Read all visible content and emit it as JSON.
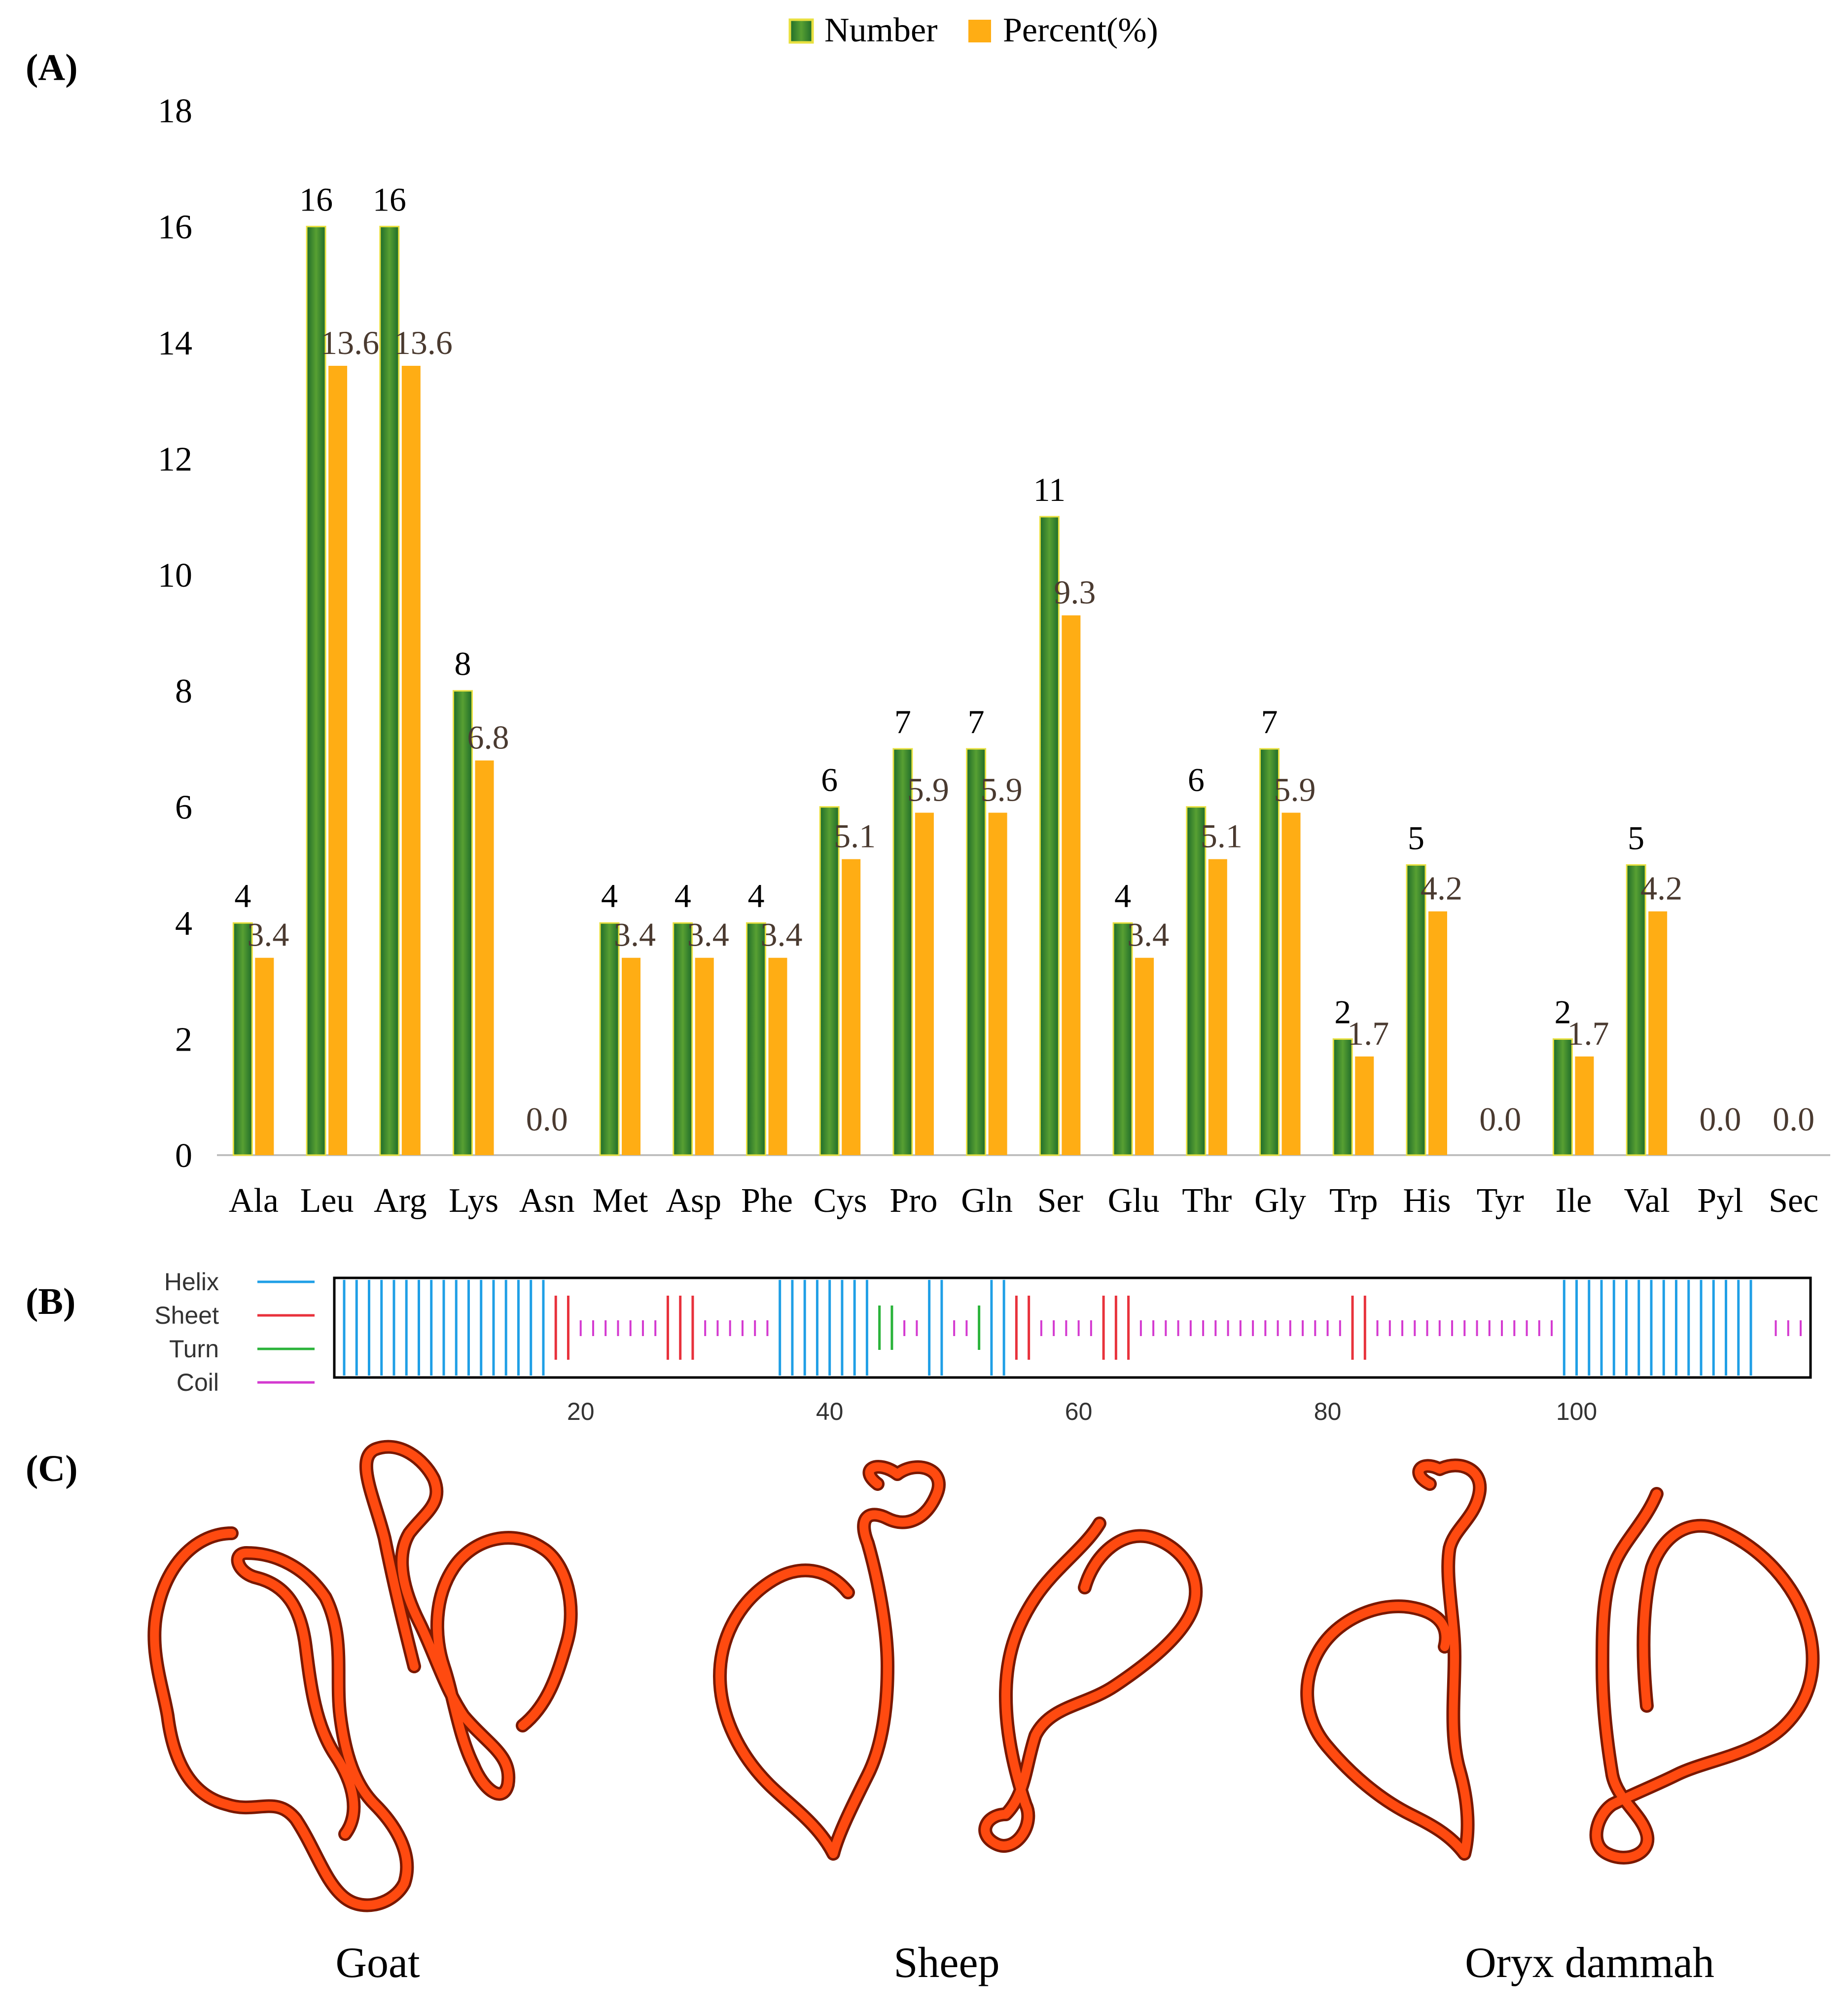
{
  "panels": {
    "a": "(A)",
    "b": "(B)",
    "c": "(C)"
  },
  "colors": {
    "number_dark": "#1e6b2a",
    "number_mid": "#4f9a2e",
    "number_edge": "#e8e040",
    "percent": "#ffad14",
    "percent_label": "#4a3a30",
    "helix": "#1f9fe6",
    "sheet": "#e8323c",
    "turn": "#2ab33a",
    "coil": "#d43ad0",
    "ribbon": "#ff4a10",
    "ribbon_edge": "#7a1800"
  },
  "chart_data": {
    "type": "bar",
    "title": "",
    "xlabel": "",
    "ylabel": "",
    "ylim": [
      0,
      18
    ],
    "yticks": [
      "0",
      "2",
      "4",
      "6",
      "8",
      "10",
      "12",
      "14",
      "16",
      "18"
    ],
    "legend": "top-center",
    "categories": [
      "Ala",
      "Leu",
      "Arg",
      "Lys",
      "Asn",
      "Met",
      "Asp",
      "Phe",
      "Cys",
      "Pro",
      "Gln",
      "Ser",
      "Glu",
      "Thr",
      "Gly",
      "Trp",
      "His",
      "Tyr",
      "Ile",
      "Val",
      "Pyl",
      "Sec"
    ],
    "series": [
      {
        "name": "Number",
        "values": [
          4,
          16,
          16,
          8,
          0,
          4,
          4,
          4,
          6,
          7,
          7,
          11,
          4,
          6,
          7,
          2,
          5,
          0,
          2,
          5,
          0,
          0
        ],
        "labels": [
          "4",
          "16",
          "16",
          "8",
          "",
          "4",
          "4",
          "4",
          "6",
          "7",
          "7",
          "11",
          "4",
          "6",
          "7",
          "2",
          "5",
          "",
          "2",
          "5",
          "",
          ""
        ]
      },
      {
        "name": "Percent(%)",
        "values": [
          3.4,
          13.6,
          13.6,
          6.8,
          0.0,
          3.4,
          3.4,
          3.4,
          5.1,
          5.9,
          5.9,
          9.3,
          3.4,
          5.1,
          5.9,
          1.7,
          4.2,
          0.0,
          1.7,
          4.2,
          0.0,
          0.0
        ],
        "labels": [
          "3.4",
          "13.6",
          "13.6",
          "6.8",
          "0.0",
          "3.4",
          "3.4",
          "3.4",
          "5.1",
          "5.9",
          "5.9",
          "9.3",
          "3.4",
          "5.1",
          "5.9",
          "1.7",
          "4.2",
          "0.0",
          "1.7",
          "4.2",
          "0.0",
          "0.0"
        ]
      }
    ]
  },
  "secondary_structure": {
    "legend": [
      "Helix",
      "Sheet",
      "Turn",
      "Coil"
    ],
    "xlim": [
      1,
      118
    ],
    "xticks": [
      "20",
      "40",
      "60",
      "80",
      "100"
    ],
    "helix": [
      1,
      2,
      3,
      4,
      5,
      6,
      7,
      8,
      9,
      10,
      11,
      12,
      13,
      14,
      15,
      16,
      17,
      36,
      37,
      38,
      39,
      40,
      41,
      42,
      43,
      48,
      49,
      53,
      54,
      99,
      100,
      101,
      102,
      103,
      104,
      105,
      106,
      107,
      108,
      109,
      110,
      111,
      112,
      113,
      114
    ],
    "sheet": [
      18,
      19,
      27,
      28,
      29,
      55,
      56,
      62,
      63,
      64,
      82,
      83
    ],
    "turn": [
      44,
      45,
      52
    ],
    "coil": [
      20,
      21,
      22,
      23,
      24,
      25,
      26,
      30,
      31,
      32,
      33,
      34,
      35,
      46,
      47,
      50,
      51,
      57,
      58,
      59,
      60,
      61,
      65,
      66,
      67,
      68,
      69,
      70,
      71,
      72,
      73,
      74,
      75,
      76,
      77,
      78,
      79,
      80,
      81,
      84,
      85,
      86,
      87,
      88,
      89,
      90,
      91,
      92,
      93,
      94,
      95,
      96,
      97,
      98,
      116,
      117,
      118
    ]
  },
  "structures": {
    "labels": [
      "Goat",
      "Sheep",
      "Oryx dammah"
    ]
  }
}
